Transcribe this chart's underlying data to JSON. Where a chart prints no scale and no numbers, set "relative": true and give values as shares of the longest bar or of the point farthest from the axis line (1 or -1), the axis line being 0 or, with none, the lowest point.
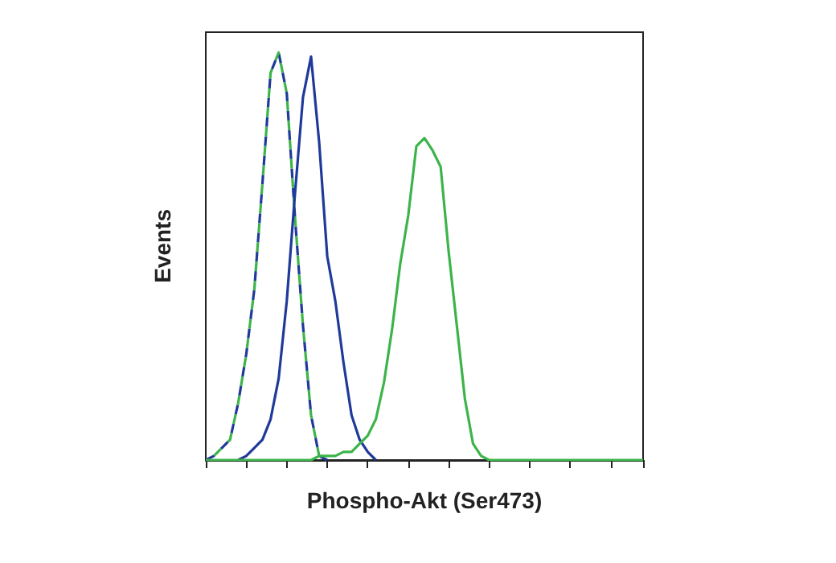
{
  "chart_data": {
    "type": "line",
    "relative": true,
    "xlabel": "Phospho-Akt (Ser473)",
    "ylabel": "Events",
    "categories": [
      null,
      null,
      null,
      null,
      null,
      null,
      null,
      null,
      null,
      null,
      null,
      null,
      null,
      null,
      null,
      null,
      null,
      null,
      null,
      null,
      null,
      null,
      null,
      null,
      null,
      null,
      null,
      null,
      null,
      null,
      null,
      null,
      null,
      null,
      null,
      null,
      null,
      null,
      null,
      null,
      null,
      null,
      null,
      null,
      null,
      null,
      null,
      null,
      null,
      null,
      null,
      null,
      null,
      null,
      null
    ],
    "series": [
      {
        "color": "#1f3a9a",
        "line_style": "dashed",
        "values": [
          0,
          0.01,
          0.03,
          0.05,
          0.14,
          0.26,
          0.42,
          0.68,
          0.95,
          1.0,
          0.9,
          0.6,
          0.33,
          0.11,
          0.01,
          0,
          null,
          null,
          null,
          null,
          null,
          null,
          null,
          null,
          null,
          null,
          null,
          null,
          null,
          null,
          null,
          null,
          null,
          null,
          null,
          null,
          null,
          null,
          null,
          null,
          null,
          null,
          null,
          null,
          null,
          null,
          null,
          null,
          null,
          null,
          null,
          null,
          null,
          null,
          null
        ]
      },
      {
        "color": "#3cb44a",
        "line_style": "dashed",
        "values": [
          0,
          0.01,
          0.03,
          0.05,
          0.14,
          0.26,
          0.42,
          0.68,
          0.95,
          1.0,
          0.9,
          0.6,
          0.33,
          0.11,
          0.01,
          0,
          null,
          null,
          null,
          null,
          null,
          null,
          null,
          null,
          null,
          null,
          null,
          null,
          null,
          null,
          null,
          null,
          null,
          null,
          null,
          null,
          null,
          null,
          null,
          null,
          null,
          null,
          null,
          null,
          null,
          null,
          null,
          null,
          null,
          null,
          null,
          null,
          null,
          null,
          null
        ]
      },
      {
        "color": "#1f3a9a",
        "line_style": "solid",
        "values": [
          null,
          null,
          null,
          null,
          0,
          0.01,
          0.03,
          0.05,
          0.1,
          0.2,
          0.39,
          0.65,
          0.89,
          0.99,
          0.78,
          0.5,
          0.39,
          0.24,
          0.11,
          0.05,
          0.02,
          0,
          null,
          null,
          null,
          null,
          null,
          null,
          null,
          null,
          null,
          null,
          null,
          null,
          null,
          null,
          null,
          null,
          null,
          null,
          null,
          null,
          null,
          null,
          null,
          null,
          null,
          null,
          null,
          null,
          null,
          null,
          null,
          null,
          null
        ]
      },
      {
        "color": "#3cb44a",
        "line_style": "solid",
        "values": [
          0,
          0,
          0,
          0,
          0,
          0,
          0,
          0,
          0,
          0,
          0,
          0,
          0,
          0,
          0.01,
          0.01,
          0.01,
          0.02,
          0.02,
          0.04,
          0.06,
          0.1,
          0.19,
          0.32,
          0.48,
          0.6,
          0.77,
          0.79,
          0.76,
          0.72,
          0.51,
          0.33,
          0.15,
          0.04,
          0.01,
          0,
          0,
          0,
          0,
          0,
          0,
          0,
          0,
          0,
          0,
          0,
          0,
          0,
          0,
          0,
          0,
          0,
          0,
          0,
          0
        ]
      }
    ]
  }
}
